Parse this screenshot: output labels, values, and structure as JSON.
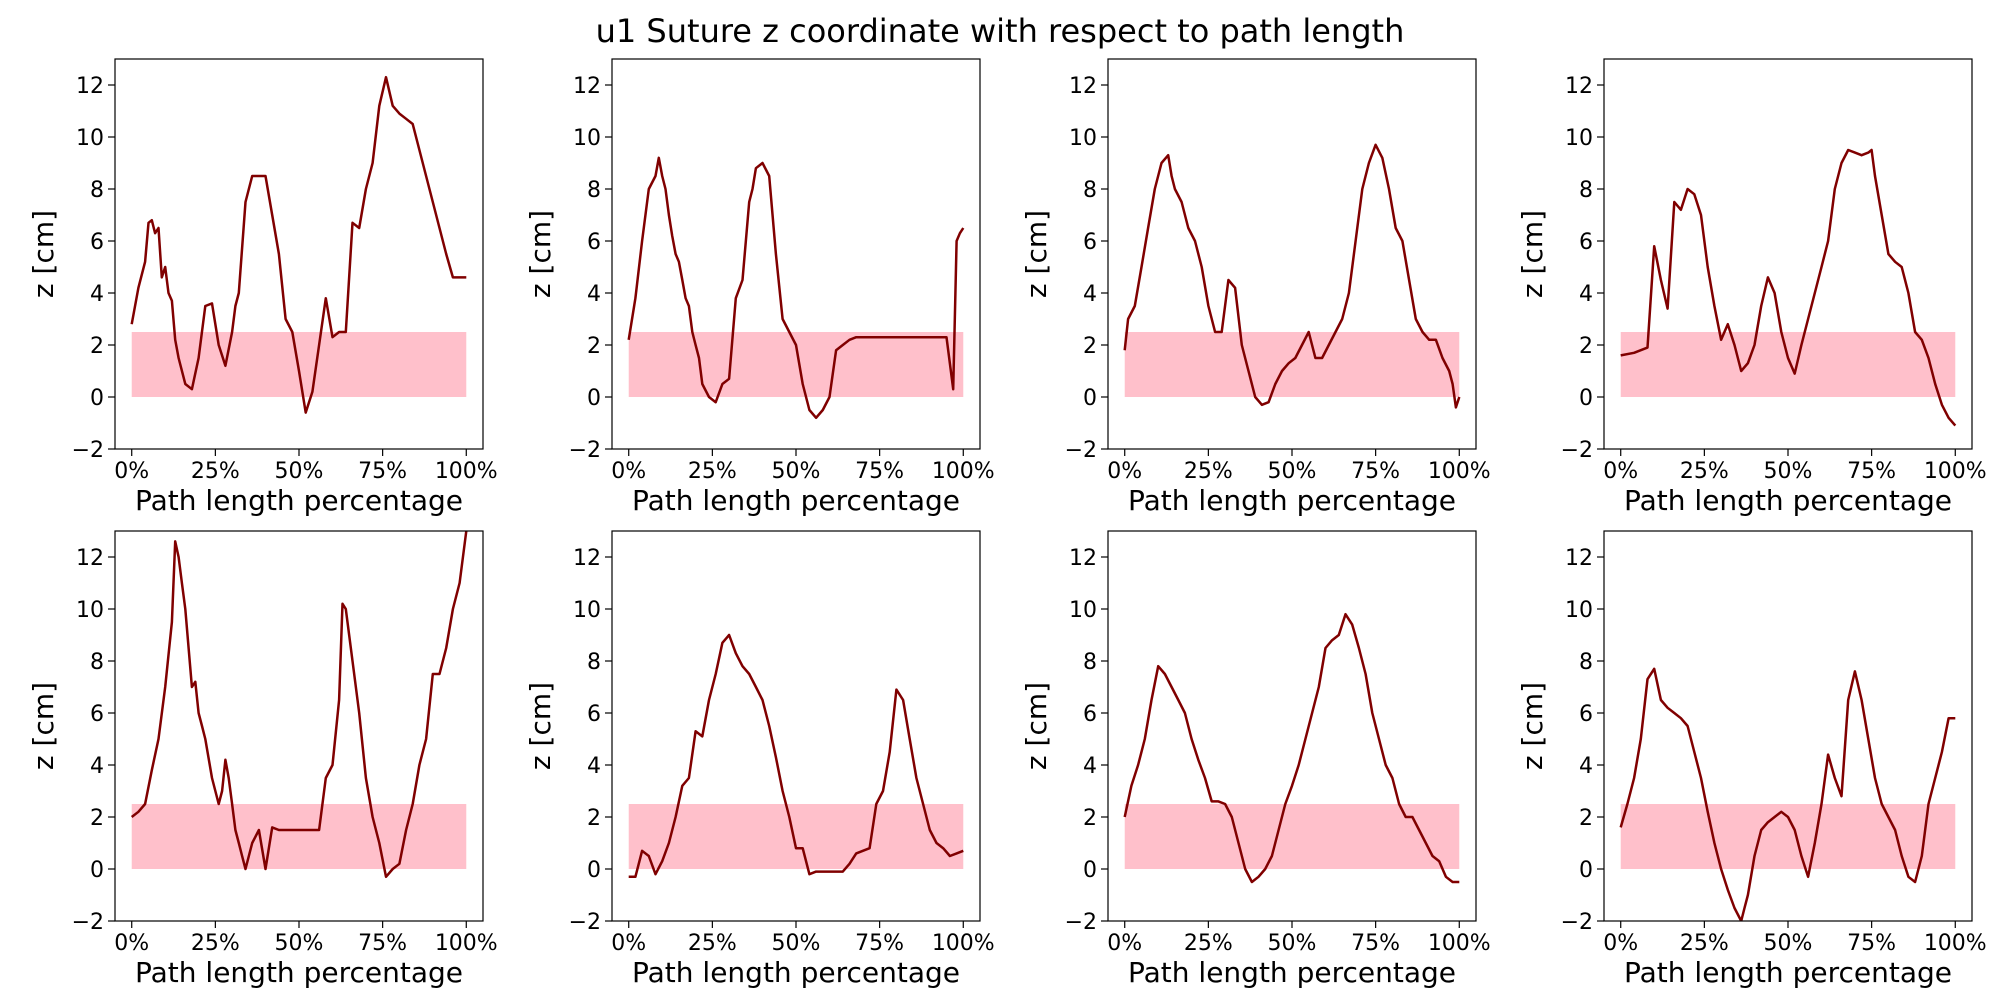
{
  "figure": {
    "title": "u1 Suture z coordinate with respect to path length"
  },
  "axes_common": {
    "xlabel": "Path length percentage",
    "ylabel": "z [cm]",
    "xlim": [
      -5,
      105
    ],
    "ylim": [
      -2,
      13
    ],
    "xticks": [
      0,
      25,
      50,
      75,
      100
    ],
    "xtick_labels": [
      "0%",
      "25%",
      "50%",
      "75%",
      "100%"
    ],
    "yticks": [
      -2,
      0,
      2,
      4,
      6,
      8,
      10,
      12
    ],
    "ytick_labels": [
      "−2",
      "0",
      "2",
      "4",
      "6",
      "8",
      "10",
      "12"
    ],
    "band": {
      "ymin": 0,
      "ymax": 2.5,
      "color": "#ffc0cb"
    },
    "line_color": "#800000",
    "grid": false,
    "layout": "2 rows x 4 columns"
  },
  "chart_data": [
    {
      "type": "line",
      "x": [
        0,
        2,
        4,
        5,
        6,
        7,
        8,
        9,
        10,
        11,
        12,
        13,
        14,
        16,
        18,
        20,
        22,
        24,
        26,
        28,
        30,
        31,
        32,
        34,
        36,
        38,
        40,
        42,
        44,
        46,
        48,
        50,
        52,
        54,
        56,
        58,
        60,
        62,
        64,
        66,
        68,
        70,
        72,
        74,
        76,
        78,
        80,
        82,
        84,
        86,
        88,
        90,
        92,
        94,
        96,
        98,
        100
      ],
      "y": [
        2.8,
        4.2,
        5.2,
        6.7,
        6.8,
        6.3,
        6.5,
        4.6,
        5.0,
        4.0,
        3.7,
        2.2,
        1.5,
        0.5,
        0.3,
        1.5,
        3.5,
        3.6,
        2.0,
        1.2,
        2.5,
        3.5,
        4.0,
        7.5,
        8.5,
        8.5,
        8.5,
        7.0,
        5.5,
        3.0,
        2.5,
        1.0,
        -0.6,
        0.2,
        2.0,
        3.8,
        2.3,
        2.5,
        2.5,
        6.7,
        6.5,
        8.0,
        9.0,
        11.2,
        12.3,
        11.2,
        10.9,
        10.7,
        10.5,
        9.5,
        8.5,
        7.5,
        6.5,
        5.5,
        4.6,
        4.6,
        4.6
      ]
    },
    {
      "type": "line",
      "x": [
        0,
        2,
        4,
        6,
        8,
        9,
        10,
        11,
        12,
        13,
        14,
        15,
        16,
        17,
        18,
        19,
        20,
        21,
        22,
        24,
        26,
        28,
        30,
        32,
        34,
        36,
        37,
        38,
        40,
        42,
        44,
        46,
        48,
        50,
        52,
        54,
        56,
        58,
        60,
        62,
        64,
        66,
        68,
        70,
        72,
        75,
        78,
        80,
        83,
        86,
        89,
        91,
        93,
        95,
        97,
        98,
        99,
        100
      ],
      "y": [
        2.2,
        3.8,
        6.0,
        8.0,
        8.5,
        9.2,
        8.5,
        8.0,
        7.0,
        6.2,
        5.5,
        5.2,
        4.5,
        3.8,
        3.5,
        2.5,
        2.0,
        1.5,
        0.5,
        0.0,
        -0.2,
        0.5,
        0.7,
        3.8,
        4.5,
        7.5,
        8.0,
        8.8,
        9.0,
        8.5,
        5.5,
        3.0,
        2.5,
        2.0,
        0.5,
        -0.5,
        -0.8,
        -0.5,
        0.0,
        1.8,
        2.0,
        2.2,
        2.3,
        2.3,
        2.3,
        2.3,
        2.3,
        2.3,
        2.3,
        2.3,
        2.3,
        2.3,
        2.3,
        2.3,
        0.3,
        6.0,
        6.3,
        6.5
      ]
    },
    {
      "type": "line",
      "x": [
        0,
        1,
        3,
        5,
        7,
        9,
        11,
        13,
        14,
        15,
        17,
        19,
        21,
        23,
        25,
        27,
        29,
        31,
        33,
        35,
        37,
        39,
        41,
        43,
        45,
        47,
        49,
        51,
        53,
        55,
        57,
        59,
        61,
        63,
        65,
        67,
        69,
        71,
        73,
        75,
        77,
        79,
        81,
        83,
        85,
        87,
        89,
        91,
        93,
        95,
        97,
        98,
        99,
        100
      ],
      "y": [
        1.8,
        3.0,
        3.5,
        5.0,
        6.5,
        8.0,
        9.0,
        9.3,
        8.5,
        8.0,
        7.5,
        6.5,
        6.0,
        5.0,
        3.5,
        2.5,
        2.5,
        4.5,
        4.2,
        2.0,
        1.0,
        0.0,
        -0.3,
        -0.2,
        0.5,
        1.0,
        1.3,
        1.5,
        2.0,
        2.5,
        1.5,
        1.5,
        2.0,
        2.5,
        3.0,
        4.0,
        6.0,
        8.0,
        9.0,
        9.7,
        9.2,
        8.0,
        6.5,
        6.0,
        4.5,
        3.0,
        2.5,
        2.2,
        2.2,
        1.5,
        1.0,
        0.5,
        -0.4,
        0.0
      ]
    },
    {
      "type": "line",
      "x": [
        0,
        4,
        8,
        10,
        12,
        14,
        16,
        18,
        20,
        22,
        24,
        26,
        28,
        30,
        32,
        34,
        36,
        38,
        40,
        42,
        44,
        46,
        48,
        50,
        52,
        54,
        56,
        58,
        60,
        62,
        64,
        66,
        68,
        70,
        72,
        74,
        75,
        76,
        78,
        80,
        82,
        84,
        86,
        88,
        90,
        92,
        94,
        96,
        98,
        100
      ],
      "y": [
        1.6,
        1.7,
        1.9,
        5.8,
        4.5,
        3.4,
        7.5,
        7.2,
        8.0,
        7.8,
        7.0,
        5.0,
        3.5,
        2.2,
        2.8,
        2.0,
        1.0,
        1.3,
        2.0,
        3.5,
        4.6,
        4.0,
        2.5,
        1.5,
        0.9,
        2.0,
        3.0,
        4.0,
        5.0,
        6.0,
        8.0,
        9.0,
        9.5,
        9.4,
        9.3,
        9.4,
        9.5,
        8.5,
        7.0,
        5.5,
        5.2,
        5.0,
        4.0,
        2.5,
        2.2,
        1.5,
        0.5,
        -0.3,
        -0.8,
        -1.1
      ]
    },
    {
      "type": "line",
      "x": [
        0,
        2,
        4,
        6,
        8,
        10,
        12,
        13,
        14,
        15,
        16,
        17,
        18,
        19,
        20,
        21,
        22,
        24,
        26,
        27,
        28,
        29,
        30,
        31,
        32,
        33,
        34,
        36,
        38,
        40,
        42,
        44,
        46,
        48,
        50,
        52,
        54,
        56,
        58,
        60,
        62,
        63,
        64,
        66,
        68,
        70,
        72,
        74,
        76,
        78,
        80,
        82,
        84,
        86,
        88,
        90,
        92,
        94,
        96,
        98,
        100
      ],
      "y": [
        2.0,
        2.2,
        2.5,
        3.8,
        5.0,
        7.0,
        9.5,
        12.6,
        12.0,
        11.0,
        10.0,
        8.5,
        7.0,
        7.2,
        6.0,
        5.5,
        5.0,
        3.5,
        2.5,
        3.0,
        4.2,
        3.5,
        2.5,
        1.5,
        1.0,
        0.5,
        0.0,
        1.0,
        1.5,
        0.0,
        1.6,
        1.5,
        1.5,
        1.5,
        1.5,
        1.5,
        1.5,
        1.5,
        3.5,
        4.0,
        6.5,
        10.2,
        10.0,
        8.0,
        6.0,
        3.5,
        2.0,
        1.0,
        -0.3,
        0.0,
        0.2,
        1.5,
        2.5,
        4.0,
        5.0,
        7.5,
        7.5,
        8.5,
        10.0,
        11.0,
        13.0
      ]
    },
    {
      "type": "line",
      "x": [
        0,
        2,
        4,
        6,
        8,
        10,
        12,
        14,
        16,
        18,
        20,
        22,
        24,
        26,
        28,
        30,
        32,
        34,
        36,
        38,
        40,
        42,
        44,
        46,
        48,
        50,
        52,
        54,
        56,
        58,
        60,
        62,
        64,
        66,
        68,
        70,
        72,
        74,
        76,
        78,
        80,
        82,
        84,
        86,
        88,
        90,
        92,
        94,
        96,
        98,
        100
      ],
      "y": [
        -0.3,
        -0.3,
        0.7,
        0.5,
        -0.2,
        0.3,
        1.0,
        2.0,
        3.2,
        3.5,
        5.3,
        5.1,
        6.5,
        7.5,
        8.7,
        9.0,
        8.3,
        7.8,
        7.5,
        7.0,
        6.5,
        5.5,
        4.3,
        3.0,
        2.0,
        0.8,
        0.8,
        -0.2,
        -0.1,
        -0.1,
        -0.1,
        -0.1,
        -0.1,
        0.2,
        0.6,
        0.7,
        0.8,
        2.5,
        3.0,
        4.5,
        6.9,
        6.5,
        5.0,
        3.5,
        2.5,
        1.5,
        1.0,
        0.8,
        0.5,
        0.6,
        0.7
      ]
    },
    {
      "type": "line",
      "x": [
        0,
        2,
        4,
        6,
        8,
        10,
        12,
        14,
        16,
        18,
        20,
        22,
        24,
        26,
        28,
        30,
        32,
        34,
        36,
        38,
        40,
        42,
        44,
        46,
        48,
        50,
        52,
        54,
        56,
        58,
        60,
        62,
        64,
        66,
        68,
        70,
        72,
        74,
        76,
        78,
        80,
        82,
        84,
        86,
        88,
        90,
        92,
        94,
        96,
        98,
        100
      ],
      "y": [
        2.0,
        3.2,
        4.0,
        5.0,
        6.5,
        7.8,
        7.5,
        7.0,
        6.5,
        6.0,
        5.0,
        4.2,
        3.5,
        2.6,
        2.6,
        2.5,
        2.0,
        1.0,
        0.0,
        -0.5,
        -0.3,
        0.0,
        0.5,
        1.5,
        2.5,
        3.2,
        4.0,
        5.0,
        6.0,
        7.0,
        8.5,
        8.8,
        9.0,
        9.8,
        9.4,
        8.5,
        7.5,
        6.0,
        5.0,
        4.0,
        3.5,
        2.5,
        2.0,
        2.0,
        1.5,
        1.0,
        0.5,
        0.3,
        -0.3,
        -0.5,
        -0.5
      ]
    },
    {
      "type": "line",
      "x": [
        0,
        2,
        4,
        6,
        8,
        10,
        12,
        14,
        16,
        18,
        20,
        22,
        24,
        26,
        28,
        30,
        32,
        34,
        36,
        37,
        38,
        40,
        42,
        44,
        46,
        48,
        50,
        52,
        54,
        56,
        58,
        60,
        62,
        64,
        66,
        68,
        70,
        72,
        74,
        76,
        78,
        80,
        82,
        84,
        86,
        88,
        90,
        92,
        94,
        96,
        98,
        100
      ],
      "y": [
        1.6,
        2.5,
        3.5,
        5.0,
        7.3,
        7.7,
        6.5,
        6.2,
        6.0,
        5.8,
        5.5,
        4.5,
        3.5,
        2.2,
        1.0,
        0.0,
        -0.8,
        -1.5,
        -2.0,
        -1.5,
        -1.0,
        0.5,
        1.5,
        1.8,
        2.0,
        2.2,
        2.0,
        1.5,
        0.5,
        -0.3,
        1.0,
        2.5,
        4.4,
        3.5,
        2.8,
        6.5,
        7.6,
        6.5,
        5.0,
        3.5,
        2.5,
        2.0,
        1.5,
        0.5,
        -0.3,
        -0.5,
        0.5,
        2.5,
        3.5,
        4.5,
        5.8,
        5.8
      ]
    }
  ]
}
